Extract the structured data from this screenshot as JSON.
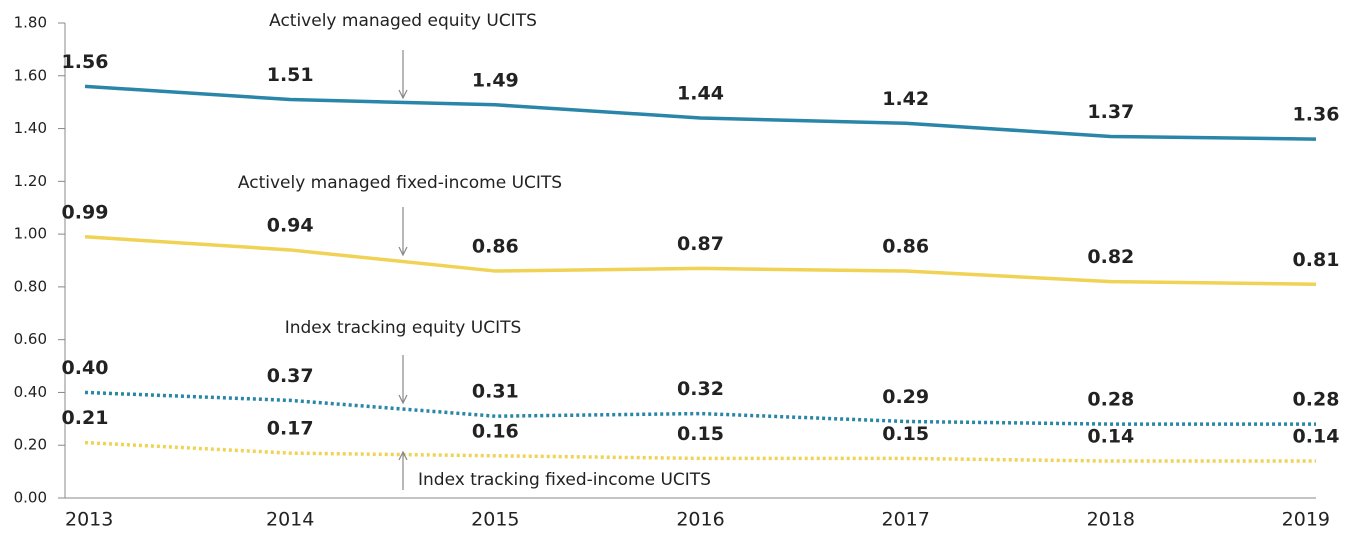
{
  "chart_data": {
    "type": "line",
    "categories": [
      "2013",
      "2014",
      "2015",
      "2016",
      "2017",
      "2018",
      "2019"
    ],
    "ylim": [
      0,
      1.8
    ],
    "yticks": [
      {
        "value": 0,
        "label": "0.00"
      },
      {
        "value": 0.2,
        "label": "0.20"
      },
      {
        "value": 0.4,
        "label": "0.40"
      },
      {
        "value": 0.6,
        "label": "0.60"
      },
      {
        "value": 0.8,
        "label": "0.80"
      },
      {
        "value": 1,
        "label": "1.00"
      },
      {
        "value": 1.2,
        "label": "1.20"
      },
      {
        "value": 1.4,
        "label": "1.40"
      },
      {
        "value": 1.6,
        "label": "1.60"
      },
      {
        "value": 1.8,
        "label": "1.80"
      }
    ],
    "series": [
      {
        "name": "Actively managed equity UCITS",
        "color": "#2a86a8",
        "line_style": "solid",
        "values": [
          1.56,
          1.51,
          1.49,
          1.44,
          1.42,
          1.37,
          1.36
        ],
        "value_labels": [
          "1.56",
          "1.51",
          "1.49",
          "1.44",
          "1.42",
          "1.37",
          "1.36"
        ]
      },
      {
        "name": "Actively managed fixed-income UCITS",
        "color": "#f0d255",
        "line_style": "solid",
        "values": [
          0.99,
          0.94,
          0.86,
          0.87,
          0.86,
          0.82,
          0.81
        ],
        "value_labels": [
          "0.99",
          "0.94",
          "0.86",
          "0.87",
          "0.86",
          "0.82",
          "0.81"
        ]
      },
      {
        "name": "Index tracking equity UCITS",
        "color": "#2a86a8",
        "line_style": "dotted",
        "values": [
          0.4,
          0.37,
          0.31,
          0.32,
          0.29,
          0.28,
          0.28
        ],
        "value_labels": [
          "0.40",
          "0.37",
          "0.31",
          "0.32",
          "0.29",
          "0.28",
          "0.28"
        ]
      },
      {
        "name": "Index tracking fixed-income UCITS",
        "color": "#f0d255",
        "line_style": "dotted",
        "values": [
          0.21,
          0.17,
          0.16,
          0.15,
          0.15,
          0.14,
          0.14
        ],
        "value_labels": [
          "0.21",
          "0.17",
          "0.16",
          "0.15",
          "0.15",
          "0.14",
          "0.14"
        ]
      }
    ]
  }
}
